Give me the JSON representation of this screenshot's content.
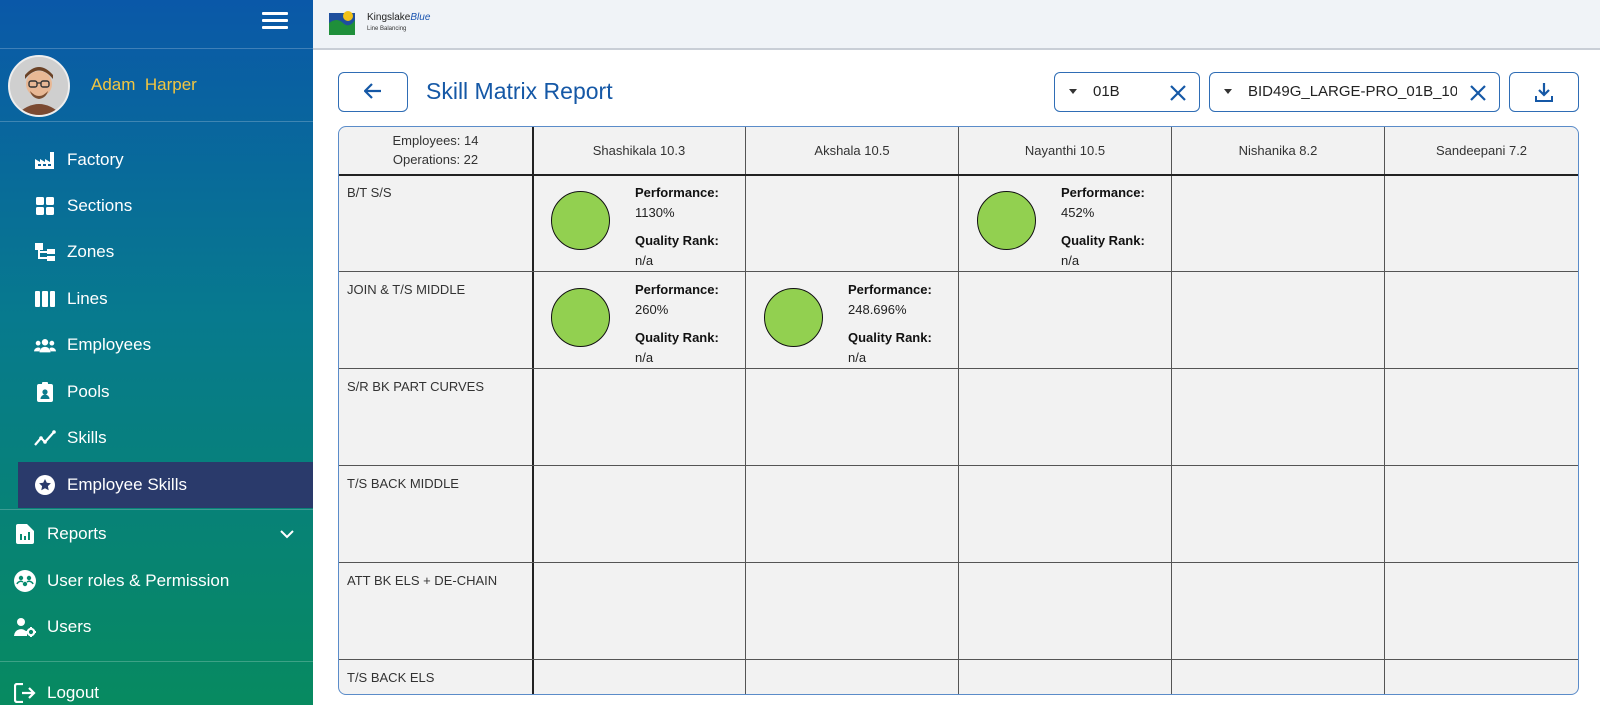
{
  "user": {
    "name": "Adam  Harper"
  },
  "sidebar": {
    "items": [
      {
        "label": "Factory"
      },
      {
        "label": "Sections"
      },
      {
        "label": "Zones"
      },
      {
        "label": "Lines"
      },
      {
        "label": "Employees"
      },
      {
        "label": "Pools"
      },
      {
        "label": "Skills"
      },
      {
        "label": "Employee Skills"
      }
    ],
    "bottom": [
      {
        "label": "Reports"
      },
      {
        "label": "User roles & Permission"
      },
      {
        "label": "Users"
      },
      {
        "label": "Logout"
      }
    ]
  },
  "logo": {
    "name_main": "Kingslake",
    "name_accent": "Blue",
    "tagline": "Line Balancing"
  },
  "header": {
    "title": "Skill Matrix Report",
    "line_select": "01B",
    "style_select": "BID49G_LARGE-PRO_01B_10"
  },
  "matrix": {
    "employees_count": "Employees: 14",
    "operations_count": "Operations: 22",
    "columns": [
      "Shashikala 10.3",
      "Akshala 10.5",
      "Nayanthi 10.5",
      "Nishanika 8.2",
      "Sandeepani 7.2"
    ],
    "rows": [
      "B/T S/S",
      "JOIN & T/S MIDDLE",
      "S/R BK PART CURVES",
      "T/S BACK MIDDLE",
      "ATT BK ELS + DE-CHAIN",
      "T/S BACK ELS"
    ],
    "perf_label": "Performance:",
    "quality_label": "Quality Rank:",
    "cells": [
      {
        "performance": "1130%",
        "quality": "n/a"
      },
      {
        "performance": "452%",
        "quality": "n/a"
      },
      {
        "performance": "260%",
        "quality": "n/a"
      },
      {
        "performance": "248.696%",
        "quality": "n/a"
      }
    ]
  },
  "colors": {
    "skill_dot": "#92d050",
    "active_nav": "#2a3a6b",
    "accent": "#1558a6"
  }
}
